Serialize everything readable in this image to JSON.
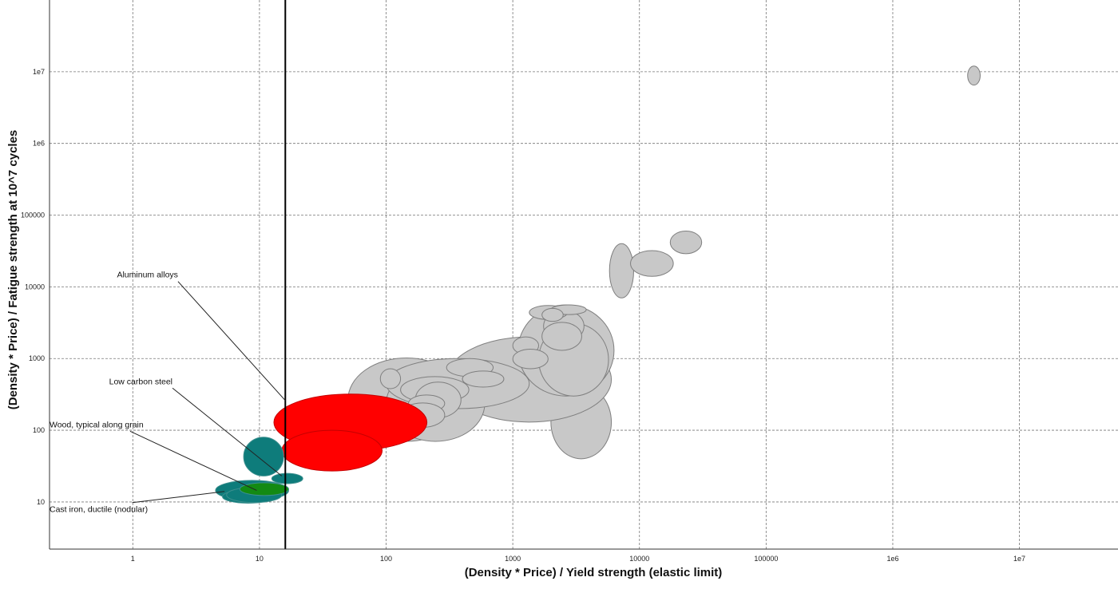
{
  "chart_data": {
    "type": "scatter",
    "title": "",
    "xlabel": "(Density * Price) / Yield strength (elastic limit)",
    "ylabel": "(Density * Price) / Fatigue strength at 10^7 cycles",
    "x_scale": "log",
    "y_scale": "log",
    "xlim": [
      0.22,
      60000000
    ],
    "ylim": [
      2.2,
      100000000
    ],
    "grid": true,
    "x_ticks": [
      {
        "value": 1,
        "label": "1"
      },
      {
        "value": 10,
        "label": "10"
      },
      {
        "value": 100,
        "label": "100"
      },
      {
        "value": 1000,
        "label": "1000"
      },
      {
        "value": 10000,
        "label": "10000"
      },
      {
        "value": 100000,
        "label": "100000"
      },
      {
        "value": 1000000,
        "label": "1e6"
      },
      {
        "value": 10000000,
        "label": "1e7"
      }
    ],
    "y_ticks": [
      {
        "value": 10,
        "label": "10"
      },
      {
        "value": 100,
        "label": "100"
      },
      {
        "value": 1000,
        "label": "1000"
      },
      {
        "value": 10000,
        "label": "10000"
      },
      {
        "value": 100000,
        "label": "100000"
      },
      {
        "value": 1000000,
        "label": "1e6"
      },
      {
        "value": 10000000,
        "label": "1e7"
      }
    ],
    "limit_line": {
      "x": 16
    },
    "colors": {
      "background_material": "#c8c8c8",
      "aluminum": "#ff0000",
      "steel_teal": "#0e7c7b",
      "wood_green": "#138a13",
      "outline": "#7f7f7f"
    },
    "bubbles": [
      {
        "x_range": [
          2000,
          6000
        ],
        "y_range": [
          40,
          420
        ],
        "cat": "other"
      },
      {
        "x_range": [
          300,
          6000
        ],
        "y_range": [
          130,
          2000
        ],
        "cat": "other"
      },
      {
        "x_range": [
          1100,
          6300
        ],
        "y_range": [
          300,
          5600
        ],
        "cat": "other"
      },
      {
        "x_range": [
          1600,
          5700
        ],
        "y_range": [
          300,
          3100
        ],
        "cat": "other"
      },
      {
        "x_range": [
          50,
          420
        ],
        "y_range": [
          70,
          1020
        ],
        "cat": "other"
      },
      {
        "x_range": [
          100,
          600
        ],
        "y_range": [
          70,
          780
        ],
        "cat": "other"
      },
      {
        "x_range": [
          100,
          1350
        ],
        "y_range": [
          200,
          1000
        ],
        "cat": "other"
      },
      {
        "x_range": [
          1750,
          3650
        ],
        "y_range": [
          1700,
          4700
        ],
        "cat": "other"
      },
      {
        "x_range": [
          1700,
          3500
        ],
        "y_range": [
          1300,
          3200
        ],
        "cat": "other"
      },
      {
        "x_range": [
          1350,
          2700
        ],
        "y_range": [
          3500,
          5500
        ],
        "cat": "other"
      },
      {
        "x_range": [
          2000,
          3800
        ],
        "y_range": [
          4100,
          5600
        ],
        "cat": "other"
      },
      {
        "x_range": [
          1700,
          2500
        ],
        "y_range": [
          3300,
          5000
        ],
        "cat": "other"
      },
      {
        "x_range": [
          1000,
          1600
        ],
        "y_range": [
          1150,
          2000
        ],
        "cat": "other"
      },
      {
        "x_range": [
          1000,
          1900
        ],
        "y_range": [
          720,
          1350
        ],
        "cat": "other"
      },
      {
        "x_range": [
          300,
          700
        ],
        "y_range": [
          560,
          1000
        ],
        "cat": "other"
      },
      {
        "x_range": [
          400,
          850
        ],
        "y_range": [
          400,
          670
        ],
        "cat": "other"
      },
      {
        "x_range": [
          130,
          450
        ],
        "y_range": [
          240,
          560
        ],
        "cat": "other"
      },
      {
        "x_range": [
          90,
          130
        ],
        "y_range": [
          380,
          720
        ],
        "cat": "other"
      },
      {
        "x_range": [
          170,
          390
        ],
        "y_range": [
          150,
          470
        ],
        "cat": "other"
      },
      {
        "x_range": [
          150,
          290
        ],
        "y_range": [
          180,
          310
        ],
        "cat": "other"
      },
      {
        "x_range": [
          130,
          290
        ],
        "y_range": [
          110,
          240
        ],
        "cat": "other"
      },
      {
        "x_range": [
          60,
          140
        ],
        "y_range": [
          130,
          270
        ],
        "cat": "other"
      },
      {
        "x_range": [
          35,
          70
        ],
        "y_range": [
          170,
          270
        ],
        "cat": "other"
      },
      {
        "x_range": [
          5800,
          9000
        ],
        "y_range": [
          7000,
          40000
        ],
        "cat": "other"
      },
      {
        "x_range": [
          8500,
          18500
        ],
        "y_range": [
          14000,
          32000
        ],
        "cat": "other"
      },
      {
        "x_range": [
          17500,
          31000
        ],
        "y_range": [
          29000,
          60000
        ],
        "cat": "other"
      },
      {
        "x_range": [
          3900000,
          4900000
        ],
        "y_range": [
          6500000,
          12000000
        ],
        "cat": "other"
      },
      {
        "x_range": [
          13,
          210
        ],
        "y_range": [
          52,
          320
        ],
        "cat": "aluminum"
      },
      {
        "x_range": [
          15,
          93
        ],
        "y_range": [
          27,
          100
        ],
        "cat": "aluminum"
      },
      {
        "x_range": [
          4.5,
          17
        ],
        "y_range": [
          10.5,
          20
        ],
        "cat": "steel"
      },
      {
        "x_range": [
          5.1,
          13
        ],
        "y_range": [
          9.6,
          14.7
        ],
        "cat": "steel"
      },
      {
        "x_range": [
          5.5,
          15
        ],
        "y_range": [
          9.8,
          16
        ],
        "cat": "steel"
      },
      {
        "x_range": [
          7,
          17
        ],
        "y_range": [
          12.3,
          18.5
        ],
        "cat": "wood"
      },
      {
        "x_range": [
          7.5,
          15.5
        ],
        "y_range": [
          23,
          80
        ],
        "cat": "steel"
      },
      {
        "x_range": [
          12.5,
          22
        ],
        "y_range": [
          18,
          25
        ],
        "cat": "steel"
      }
    ],
    "annotations": [
      {
        "text": "Aluminum alloys",
        "label_x": 0.75,
        "label_y": 13500,
        "target_x": 16,
        "target_y": 260
      },
      {
        "text": "Low carbon steel",
        "label_x": 0.65,
        "label_y": 440,
        "target_x": 15,
        "target_y": 23
      },
      {
        "text": "Wood, typical along grain",
        "label_x": 0.22,
        "label_y": 110,
        "target_x": 9.5,
        "target_y": 14.5
      },
      {
        "text": "Cast iron, ductile (nodular)",
        "label_x": 0.22,
        "label_y": 7.2,
        "target_x": 5.3,
        "target_y": 14
      }
    ]
  }
}
